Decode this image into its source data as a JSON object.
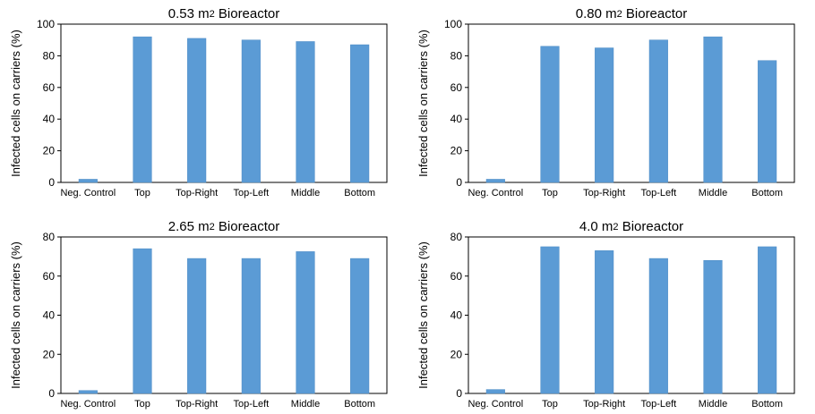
{
  "chart_data": [
    {
      "type": "bar",
      "title_main": "0.53 m",
      "title_sup": "2",
      "title_rest": " Bioreactor",
      "ylabel": "Infected cells on carriers (%)",
      "ylim": [
        0,
        100
      ],
      "yticks": [
        0,
        20,
        40,
        60,
        80,
        100
      ],
      "categories": [
        "Neg. Control",
        "Top",
        "Top-Right",
        "Top-Left",
        "Middle",
        "Bottom"
      ],
      "values": [
        2,
        92,
        91,
        90,
        89,
        87
      ],
      "color": "#5b9bd5"
    },
    {
      "type": "bar",
      "title_main": "0.80 m",
      "title_sup": "2",
      "title_rest": " Bioreactor",
      "ylabel": "Infected cells on carriers (%)",
      "ylim": [
        0,
        100
      ],
      "yticks": [
        0,
        20,
        40,
        60,
        80,
        100
      ],
      "categories": [
        "Neg. Control",
        "Top",
        "Top-Right",
        "Top-Left",
        "Middle",
        "Bottom"
      ],
      "values": [
        2,
        86,
        85,
        90,
        92,
        77
      ],
      "color": "#5b9bd5"
    },
    {
      "type": "bar",
      "title_main": "2.65 m",
      "title_sup": "2",
      "title_rest": " Bioreactor",
      "ylabel": "Infected cells on carriers (%)",
      "ylim": [
        0,
        80
      ],
      "yticks": [
        0,
        20,
        40,
        60,
        80
      ],
      "categories": [
        "Neg. Control",
        "Top",
        "Top-Right",
        "Top-Left",
        "Middle",
        "Bottom"
      ],
      "values": [
        1.5,
        74,
        69,
        69,
        72.5,
        69
      ],
      "color": "#5b9bd5"
    },
    {
      "type": "bar",
      "title_main": "4.0 m",
      "title_sup": "2",
      "title_rest": "  Bioreactor",
      "ylabel": "Infected cells on carriers (%)",
      "ylim": [
        0,
        80
      ],
      "yticks": [
        0,
        20,
        40,
        60,
        80
      ],
      "categories": [
        "Neg. Control",
        "Top",
        "Top-Right",
        "Top-Left",
        "Middle",
        "Bottom"
      ],
      "values": [
        2,
        75,
        73,
        69,
        68,
        75
      ],
      "color": "#5b9bd5"
    }
  ]
}
